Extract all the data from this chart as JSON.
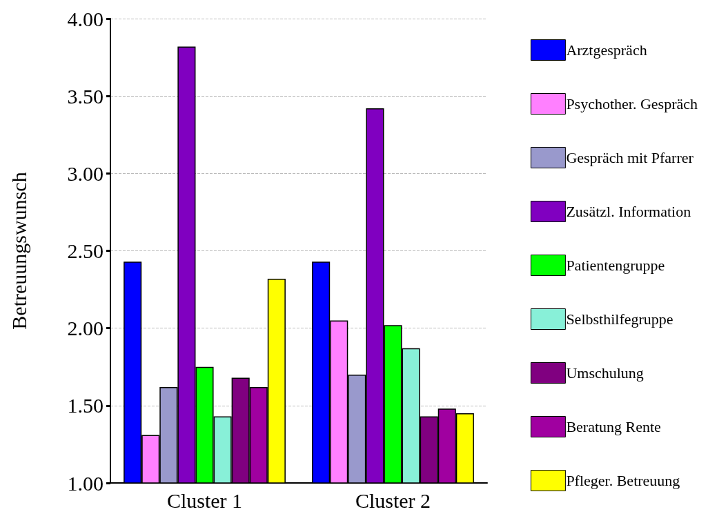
{
  "chart_data": {
    "type": "bar",
    "ylabel": "Betreuungswunsch",
    "categories": [
      "Cluster 1",
      "Cluster 2"
    ],
    "series": [
      {
        "name": "Arztgespräch",
        "color": "#0000ff",
        "values": [
          2.43,
          2.43
        ]
      },
      {
        "name": "Psychother. Gespräch",
        "color": "#ff80ff",
        "values": [
          1.31,
          2.05
        ]
      },
      {
        "name": "Gespräch mit Pfarrer",
        "color": "#9999cc",
        "values": [
          1.62,
          1.7
        ]
      },
      {
        "name": "Zusätzl. Information",
        "color": "#8000c0",
        "values": [
          3.82,
          3.42
        ]
      },
      {
        "name": "Patientengruppe",
        "color": "#00ff00",
        "values": [
          1.75,
          2.02
        ]
      },
      {
        "name": "Selbsthilfegruppe",
        "color": "#88f0d8",
        "values": [
          1.43,
          1.87
        ]
      },
      {
        "name": "Umschulung",
        "color": "#800080",
        "values": [
          1.68,
          1.43
        ]
      },
      {
        "name": "Beratung Rente",
        "color": "#a000a0",
        "values": [
          1.62,
          1.48
        ]
      },
      {
        "name": "Pfleger. Betreuung",
        "color": "#ffff00",
        "values": [
          2.32,
          1.45
        ]
      }
    ],
    "ylim": [
      1,
      4
    ],
    "yticks": [
      {
        "value": 1,
        "label": "1.00"
      },
      {
        "value": 1.5,
        "label": "1.50"
      },
      {
        "value": 2,
        "label": "2.00"
      },
      {
        "value": 2.5,
        "label": "2.50"
      },
      {
        "value": 3,
        "label": "3.00"
      },
      {
        "value": 3.5,
        "label": "3.50"
      },
      {
        "value": 4,
        "label": "4.00"
      }
    ],
    "grid": "y",
    "legend": "right"
  }
}
